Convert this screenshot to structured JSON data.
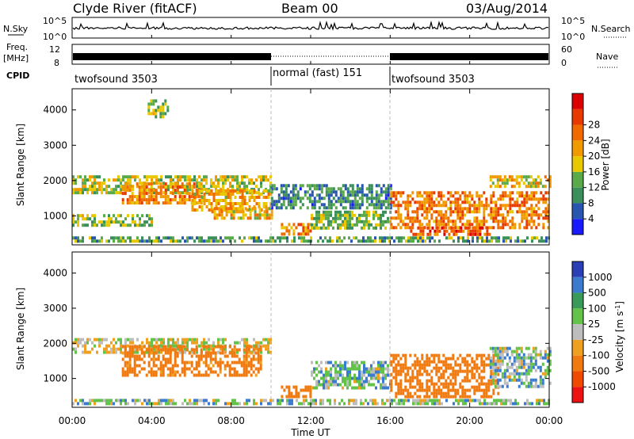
{
  "header": {
    "station": "Clyde River (fitACF)",
    "beam": "Beam 00",
    "date": "03/Aug/2014"
  },
  "noise_panel": {
    "left_label": "N.Sky",
    "right_label": "N.Search",
    "y_ticks": [
      "10^5",
      "10^0"
    ],
    "y_range_log10": [
      0,
      5
    ]
  },
  "freq_panel": {
    "left_label_top": "Freq.",
    "left_label_unit": "[MHz]",
    "right_label": "Nave",
    "left_ticks": [
      "12",
      "8"
    ],
    "left_range": [
      8,
      12
    ],
    "right_ticks": [
      "60",
      "0"
    ],
    "right_range": [
      0,
      60
    ]
  },
  "cpid_panel": {
    "label": "CPID",
    "segments": [
      {
        "name": "twofsound 3503",
        "start_h": 0,
        "end_h": 10
      },
      {
        "name": "normal (fast) 151",
        "start_h": 10,
        "end_h": 16
      },
      {
        "name": "twofsound 3503",
        "start_h": 16,
        "end_h": 24
      }
    ]
  },
  "power_panel": {
    "ylabel": "Slant Range [km]",
    "y_ticks": [
      "1000",
      "2000",
      "3000",
      "4000"
    ],
    "colorbar_label": "Power [dB]",
    "colorbar_ticks": [
      "4",
      "8",
      "12",
      "16",
      "20",
      "24",
      "28"
    ],
    "colors": [
      "#1a1aff",
      "#2855b0",
      "#3a8f5a",
      "#5aaa4a",
      "#e8c800",
      "#f09a00",
      "#f06a00",
      "#e83a00",
      "#dd0000"
    ]
  },
  "velocity_panel": {
    "ylabel": "Slant Range [km]",
    "y_ticks": [
      "1000",
      "2000",
      "3000",
      "4000"
    ],
    "colorbar_label": "Velocity [m s^-1]",
    "colorbar_ticks": [
      "1000",
      "500",
      "100",
      "25",
      "-25",
      "-100",
      "-500",
      "-1000"
    ],
    "colors": [
      "#2a3fb5",
      "#3a7bd0",
      "#3a9a5a",
      "#62c24a",
      "#bdbdbd",
      "#f0a020",
      "#f07a10",
      "#f04a00",
      "#ee1111"
    ]
  },
  "x_axis": {
    "label": "Time UT",
    "ticks": [
      "00:00",
      "04:00",
      "08:00",
      "12:00",
      "16:00",
      "20:00",
      "00:00"
    ]
  },
  "chart_data": {
    "type": "heatmap",
    "x_range_hours": [
      0,
      24
    ],
    "y_range_km": [
      180,
      4600
    ],
    "power_scale_db": [
      0,
      30
    ],
    "velocity_scale_ms": [
      -1000,
      1000
    ],
    "power_regions": [
      {
        "t": [
          0,
          10
        ],
        "r": [
          1650,
          2150
        ],
        "db": 14
      },
      {
        "t": [
          2.5,
          6.5
        ],
        "r": [
          1350,
          1950
        ],
        "db": 20
      },
      {
        "t": [
          6,
          10
        ],
        "r": [
          1150,
          1750
        ],
        "db": 18
      },
      {
        "t": [
          0,
          4
        ],
        "r": [
          700,
          1050
        ],
        "db": 12
      },
      {
        "t": [
          7,
          10
        ],
        "r": [
          950,
          1250
        ],
        "db": 17
      },
      {
        "t": [
          10,
          16
        ],
        "r": [
          1200,
          1900
        ],
        "db": 8
      },
      {
        "t": [
          10.5,
          12
        ],
        "r": [
          520,
          800
        ],
        "db": 20
      },
      {
        "t": [
          12,
          16
        ],
        "r": [
          650,
          1150
        ],
        "db": 12
      },
      {
        "t": [
          16,
          24
        ],
        "r": [
          700,
          1700
        ],
        "db": 21
      },
      {
        "t": [
          17,
          21
        ],
        "r": [
          450,
          700
        ],
        "db": 24
      },
      {
        "t": [
          21,
          24
        ],
        "r": [
          1800,
          2150
        ],
        "db": 16
      },
      {
        "t": [
          3.8,
          4.8
        ],
        "r": [
          3800,
          4300
        ],
        "db": 12
      },
      {
        "t": [
          0,
          24
        ],
        "r": [
          250,
          420
        ],
        "db": 10
      }
    ],
    "velocity_regions": [
      {
        "t": [
          0,
          10
        ],
        "r": [
          1700,
          2150
        ],
        "v": 0
      },
      {
        "t": [
          2.5,
          9.5
        ],
        "r": [
          1100,
          1950
        ],
        "v": -180
      },
      {
        "t": [
          10.5,
          12
        ],
        "r": [
          520,
          800
        ],
        "v": -220
      },
      {
        "t": [
          12,
          16
        ],
        "r": [
          700,
          1500
        ],
        "v": 60
      },
      {
        "t": [
          16,
          21.5
        ],
        "r": [
          450,
          1700
        ],
        "v": -220
      },
      {
        "t": [
          21,
          24
        ],
        "r": [
          800,
          1900
        ],
        "v": 60
      },
      {
        "t": [
          0,
          24
        ],
        "r": [
          250,
          420
        ],
        "v": 40
      }
    ]
  }
}
